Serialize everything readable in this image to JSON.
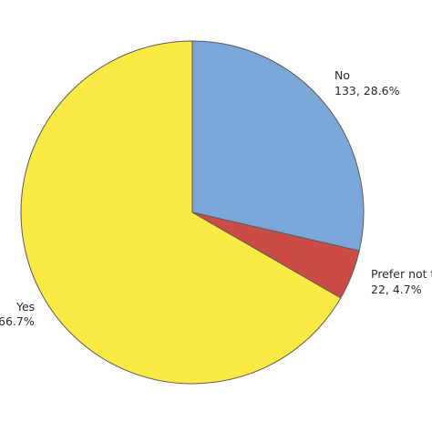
{
  "chart_data": {
    "type": "pie",
    "title": "",
    "start_angle_deg": 0,
    "direction": "clockwise",
    "slices": [
      {
        "key": "no",
        "label": "No",
        "count": 133,
        "count_text": "133, 28.6%",
        "percent": 28.6,
        "color": "#7ba6d8"
      },
      {
        "key": "prefer",
        "label": "Prefer not t",
        "count": 22,
        "count_text": "22, 4.7%",
        "percent": 4.7,
        "color": "#cc4b47"
      },
      {
        "key": "yes",
        "label": "Yes",
        "count": 310,
        "count_text": "66.7%",
        "percent": 66.7,
        "color": "#fbe944"
      }
    ]
  }
}
